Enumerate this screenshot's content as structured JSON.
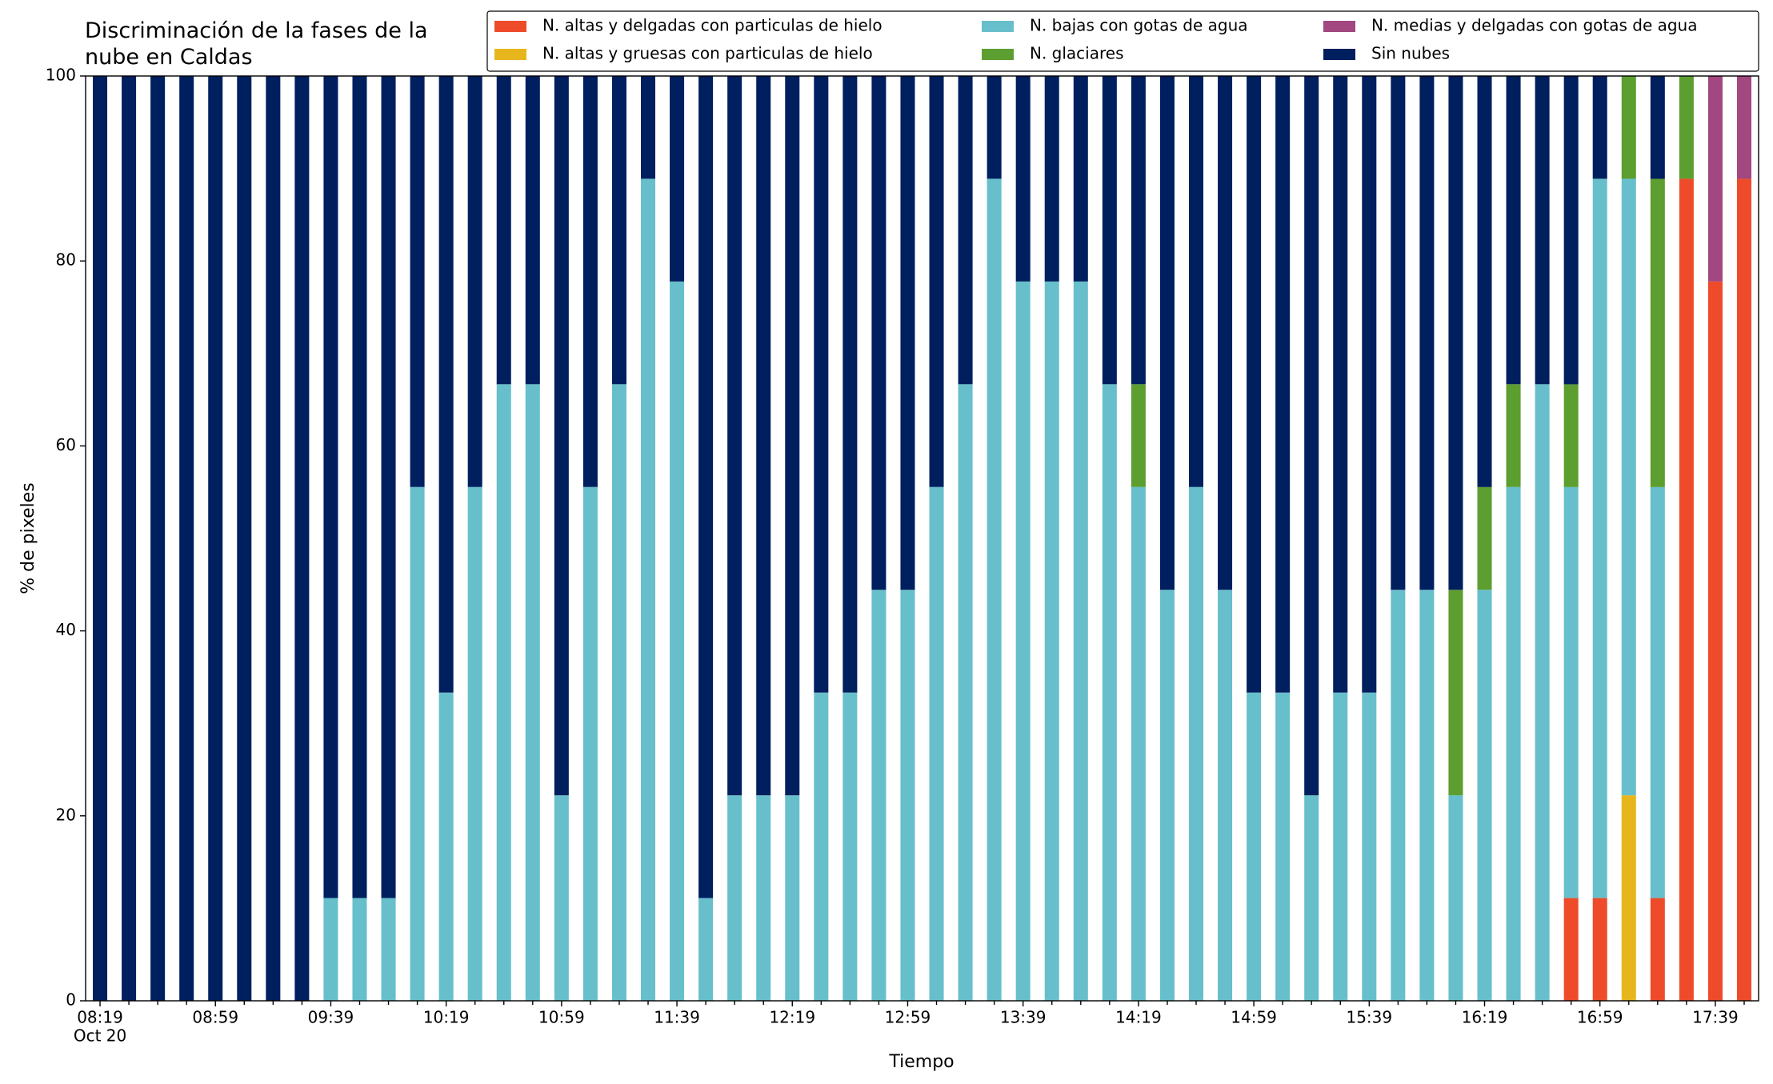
{
  "chart_data": {
    "type": "stacked_bar",
    "title": "Discriminación de la fases de la nube en Caldas",
    "x_label": "Tiempo",
    "y_label": "% de pixeles",
    "x_sublabel": "Oct 20",
    "categories": [
      "08:19",
      null,
      null,
      null,
      "08:59",
      null,
      null,
      null,
      "09:39",
      null,
      null,
      null,
      "10:19",
      null,
      null,
      null,
      "10:59",
      null,
      null,
      null,
      "11:39",
      null,
      null,
      null,
      "12:19",
      null,
      null,
      null,
      "12:59",
      null,
      null,
      null,
      "13:39",
      null,
      null,
      null,
      "14:19",
      null,
      null,
      null,
      "14:59",
      null,
      null,
      null,
      "15:39",
      null,
      null,
      null,
      "16:19",
      null,
      null,
      null,
      "16:59",
      null,
      null,
      null,
      "17:39",
      null
    ],
    "ylim": [
      0,
      100
    ],
    "yticks": [
      0,
      20,
      40,
      60,
      80,
      100
    ],
    "legend": "upper right",
    "series": [
      {
        "name": "N. altas y delgadas con particulas de hielo",
        "color": "#ee4b2b",
        "values": [
          0,
          0,
          0,
          0,
          0,
          0,
          0,
          0,
          0,
          0,
          0,
          0,
          0,
          0,
          0,
          0,
          0,
          0,
          0,
          0,
          0,
          0,
          0,
          0,
          0,
          0,
          0,
          0,
          0,
          0,
          0,
          0,
          0,
          0,
          0,
          0,
          0,
          0,
          0,
          0,
          0,
          0,
          0,
          0,
          0,
          0,
          0,
          0,
          0,
          0,
          0,
          11.11,
          11.11,
          0,
          11.11,
          88.89,
          77.78,
          88.89
        ]
      },
      {
        "name": "N. altas y gruesas con particulas de hielo",
        "color": "#e6b61c",
        "values": [
          0,
          0,
          0,
          0,
          0,
          0,
          0,
          0,
          0,
          0,
          0,
          0,
          0,
          0,
          0,
          0,
          0,
          0,
          0,
          0,
          0,
          0,
          0,
          0,
          0,
          0,
          0,
          0,
          0,
          0,
          0,
          0,
          0,
          0,
          0,
          0,
          0,
          0,
          0,
          0,
          0,
          0,
          0,
          0,
          0,
          0,
          0,
          0,
          0,
          0,
          0,
          0,
          0,
          22.22,
          0,
          0,
          0,
          0
        ]
      },
      {
        "name": "N. bajas con gotas de agua",
        "color": "#67bfcb",
        "values": [
          0,
          0,
          0,
          0,
          0,
          0,
          0,
          0,
          11.11,
          11.11,
          11.11,
          55.56,
          33.33,
          55.56,
          66.67,
          66.67,
          22.22,
          55.56,
          66.67,
          88.89,
          77.78,
          11.11,
          22.22,
          22.22,
          22.22,
          33.33,
          33.33,
          44.44,
          44.44,
          55.56,
          66.67,
          88.89,
          77.78,
          77.78,
          77.78,
          66.67,
          55.56,
          44.44,
          55.56,
          44.44,
          33.33,
          33.33,
          22.22,
          33.33,
          33.33,
          44.44,
          44.44,
          22.22,
          44.44,
          55.56,
          66.67,
          44.44,
          77.78,
          66.67,
          44.44,
          0,
          0,
          0
        ]
      },
      {
        "name": "N. glaciares",
        "color": "#5c9e2f",
        "values": [
          0,
          0,
          0,
          0,
          0,
          0,
          0,
          0,
          0,
          0,
          0,
          0,
          0,
          0,
          0,
          0,
          0,
          0,
          0,
          0,
          0,
          0,
          0,
          0,
          0,
          0,
          0,
          0,
          0,
          0,
          0,
          0,
          0,
          0,
          0,
          0,
          11.11,
          0,
          0,
          0,
          0,
          0,
          0,
          0,
          0,
          0,
          0,
          22.22,
          11.11,
          11.11,
          0,
          11.11,
          0,
          11.11,
          33.33,
          11.11,
          0,
          0
        ]
      },
      {
        "name": "N. medias y delgadas con gotas de agua",
        "color": "#a2477f",
        "values": [
          0,
          0,
          0,
          0,
          0,
          0,
          0,
          0,
          0,
          0,
          0,
          0,
          0,
          0,
          0,
          0,
          0,
          0,
          0,
          0,
          0,
          0,
          0,
          0,
          0,
          0,
          0,
          0,
          0,
          0,
          0,
          0,
          0,
          0,
          0,
          0,
          0,
          0,
          0,
          0,
          0,
          0,
          0,
          0,
          0,
          0,
          0,
          0,
          0,
          0,
          0,
          0,
          0,
          0,
          0,
          0,
          22.22,
          11.11
        ]
      },
      {
        "name": "Sin nubes",
        "color": "#001f5f",
        "values": [
          100,
          100,
          100,
          100,
          100,
          100,
          100,
          100,
          88.89,
          88.89,
          88.89,
          44.44,
          66.67,
          44.44,
          33.33,
          33.33,
          77.78,
          44.44,
          33.33,
          11.11,
          22.22,
          88.89,
          77.78,
          77.78,
          77.78,
          66.67,
          66.67,
          55.56,
          55.56,
          44.44,
          33.33,
          11.11,
          22.22,
          22.22,
          22.22,
          33.33,
          33.33,
          55.56,
          44.44,
          55.56,
          66.67,
          66.67,
          77.78,
          66.67,
          66.67,
          55.56,
          55.56,
          55.56,
          44.44,
          33.33,
          33.33,
          33.33,
          11.11,
          0,
          11.11,
          0,
          0,
          0
        ]
      }
    ]
  }
}
